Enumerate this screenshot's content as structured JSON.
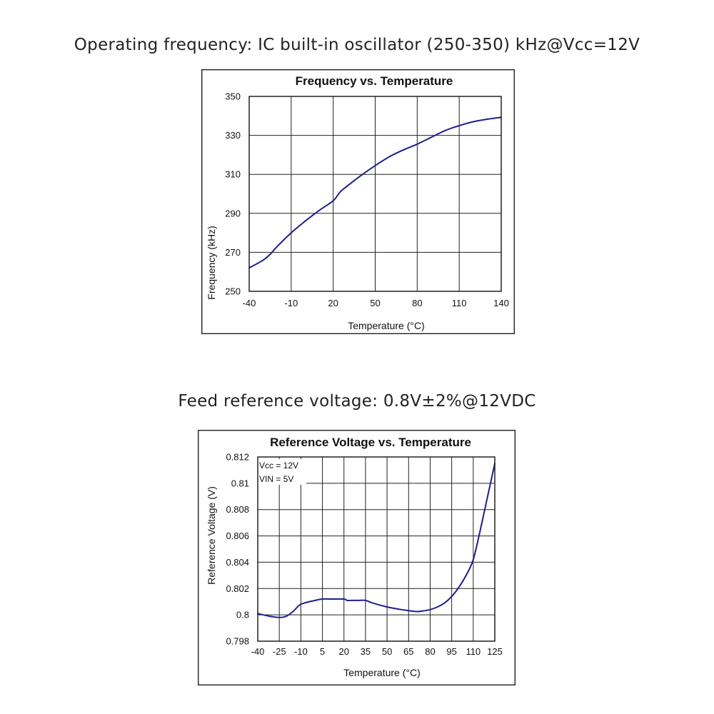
{
  "captions": {
    "frequency": "Operating frequency: IC built-in oscillator (250-350) kHz@Vcc=12V",
    "voltage": "Feed reference voltage: 0.8V±2%@12VDC"
  },
  "chart_data": [
    {
      "type": "line",
      "title": "Frequency vs. Temperature",
      "xlabel": "Temperature (°C)",
      "ylabel": "Frequency (kHz)",
      "xlim": [
        -40,
        140
      ],
      "ylim": [
        250,
        350
      ],
      "xticks": [
        -40,
        -10,
        20,
        50,
        80,
        110,
        140
      ],
      "yticks": [
        250,
        270,
        290,
        310,
        330,
        350
      ],
      "xtick_labels": [
        "-40",
        "-10",
        "20",
        "50",
        "80",
        "110",
        "140"
      ],
      "ytick_labels": [
        "250",
        "270",
        "290",
        "310",
        "330",
        "350"
      ],
      "grid": true,
      "series": [
        {
          "color": "#1f1f8c",
          "x": [
            -40,
            -30,
            -25,
            -20,
            -10,
            0,
            10,
            20,
            25,
            30,
            40,
            50,
            60,
            70,
            80,
            90,
            100,
            110,
            120,
            130,
            140
          ],
          "y": [
            262,
            266,
            269,
            273,
            280,
            286,
            291.5,
            296.5,
            301,
            304,
            309.5,
            314.5,
            319,
            322.5,
            325.5,
            329,
            332.5,
            335,
            337,
            338.3,
            339.3
          ]
        }
      ]
    },
    {
      "type": "line",
      "title": "Reference Voltage vs. Temperature",
      "xlabel": "Temperature (°C)",
      "ylabel": "Reference Voltage (V)",
      "xlim": [
        -40,
        125
      ],
      "ylim": [
        0.798,
        0.812
      ],
      "xticks": [
        -40,
        -25,
        -10,
        5,
        20,
        35,
        50,
        65,
        80,
        95,
        110,
        125
      ],
      "yticks": [
        0.798,
        0.8,
        0.802,
        0.804,
        0.806,
        0.808,
        0.81,
        0.812
      ],
      "xtick_labels": [
        "-40",
        "-25",
        "-10",
        "5",
        "20",
        "35",
        "50",
        "65",
        "80",
        "95",
        "110",
        "125"
      ],
      "ytick_labels": [
        "0.798",
        "0.8",
        "0.802",
        "0.804",
        "0.806",
        "0.808",
        "0.81",
        "0.812"
      ],
      "grid": true,
      "annotations": [
        "Vcc = 12V",
        "VIN = 5V"
      ],
      "series": [
        {
          "color": "#1f1f8c",
          "x": [
            -40,
            -32,
            -25,
            -20,
            -15,
            -10,
            0,
            5,
            10,
            20,
            22,
            25,
            30,
            35,
            40,
            50,
            60,
            70,
            75,
            80,
            85,
            90,
            95,
            100,
            105,
            110,
            115,
            120,
            125
          ],
          "y": [
            0.8001,
            0.7999,
            0.7998,
            0.7999,
            0.8003,
            0.8008,
            0.8011,
            0.8012,
            0.8012,
            0.8012,
            0.8011,
            0.8011,
            0.8011,
            0.8011,
            0.8009,
            0.8006,
            0.8004,
            0.80025,
            0.8003,
            0.8004,
            0.8006,
            0.8009,
            0.8014,
            0.8021,
            0.803,
            0.8042,
            0.8065,
            0.809,
            0.8115
          ]
        }
      ]
    }
  ]
}
